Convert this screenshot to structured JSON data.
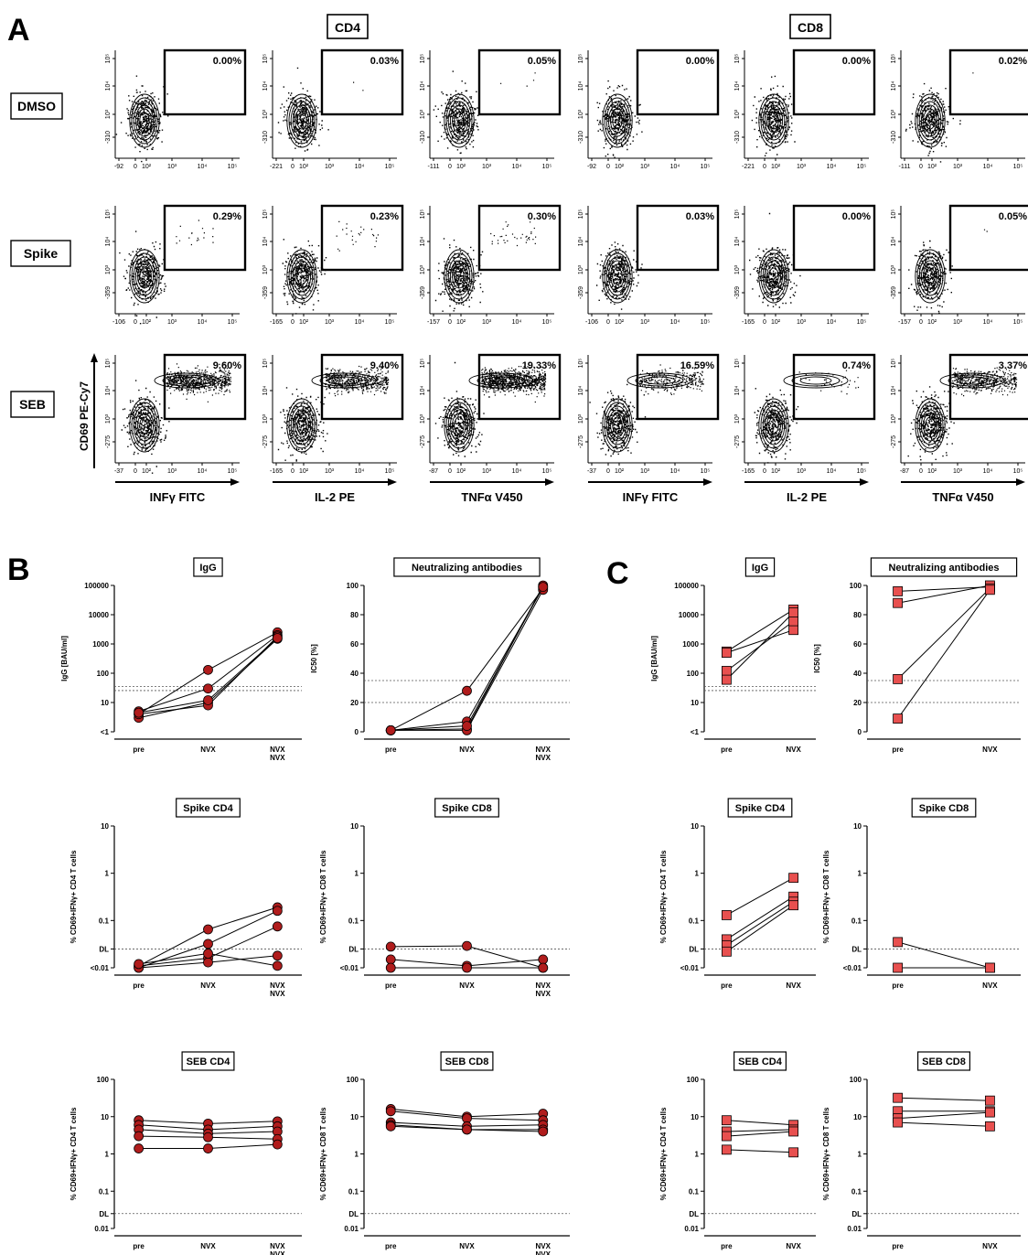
{
  "panel_letters": {
    "a": "A",
    "b": "B",
    "c": "C"
  },
  "group_headers": {
    "cd4": "CD4",
    "cd8": "CD8"
  },
  "row_labels": [
    "DMSO",
    "Spike",
    "SEB"
  ],
  "y_axis_label": "CD69 PE-Cy7",
  "x_axis_labels": [
    "INFγ FITC",
    "IL-2 PE",
    "TNFα V450",
    "INFγ FITC",
    "IL-2 PE",
    "TNFα V450"
  ],
  "flow": {
    "gate_percentages": [
      [
        "0.00%",
        "0.03%",
        "0.05%",
        "0.00%",
        "0.00%",
        "0.02%"
      ],
      [
        "0.29%",
        "0.23%",
        "0.30%",
        "0.03%",
        "0.00%",
        "0.05%"
      ],
      [
        "9.60%",
        "9.40%",
        "19.33%",
        "16.59%",
        "0.74%",
        "3.37%"
      ]
    ],
    "x_min_labels": [
      [
        "-92",
        "-221",
        "-111",
        "-92",
        "-221",
        "-111"
      ],
      [
        "-106",
        "-165",
        "-157",
        "-106",
        "-165",
        "-157"
      ],
      [
        "-37",
        "-165",
        "-87",
        "-37",
        "-165",
        "-87"
      ]
    ],
    "y_min_labels": [
      [
        "-310",
        "-310",
        "-310",
        "-310",
        "-310",
        "-310"
      ],
      [
        "-359",
        "-359",
        "-359",
        "-359",
        "-359",
        "-359"
      ],
      [
        "-275",
        "-275",
        "-275",
        "-275",
        "-275",
        "-275"
      ]
    ],
    "x_tick_labels": [
      "0",
      "10²",
      "10³",
      "10⁴",
      "10⁵"
    ],
    "y_tick_labels": [
      "10³",
      "10⁴",
      "10⁵"
    ]
  },
  "chart_data": [
    {
      "type": "line",
      "panel": "B",
      "title": "IgG",
      "ylabel": "IgG [BAU/ml]",
      "categories": [
        "pre",
        "NVX",
        "NVX\nNVX"
      ],
      "y_scale": "log",
      "y_tick_labels": [
        "<1",
        "10",
        "100",
        "1000",
        "10000",
        "100000"
      ],
      "reference_lines": [
        25.6,
        35.2
      ],
      "marker": "circle",
      "series": [
        {
          "values": [
            4,
            130,
            2500
          ]
        },
        {
          "values": [
            5,
            30,
            2000
          ]
        },
        {
          "values": [
            3,
            10,
            1500
          ]
        },
        {
          "values": [
            4,
            8,
            1800
          ]
        },
        {
          "values": [
            4.5,
            12,
            1600
          ]
        }
      ]
    },
    {
      "type": "line",
      "panel": "B",
      "title": "Neutralizing antibodies",
      "ylabel": "IC50 [%]",
      "categories": [
        "pre",
        "NVX",
        "NVX\nNVX"
      ],
      "ylim": [
        0,
        100
      ],
      "y_tick_labels": [
        "0",
        "20",
        "40",
        "60",
        "80",
        "100"
      ],
      "reference_lines": [
        20,
        35
      ],
      "marker": "circle",
      "series": [
        {
          "values": [
            1,
            28,
            98
          ]
        },
        {
          "values": [
            1,
            7,
            99
          ]
        },
        {
          "values": [
            1,
            2,
            100
          ]
        },
        {
          "values": [
            1,
            1,
            97
          ]
        },
        {
          "values": [
            1,
            4,
            99
          ]
        }
      ]
    },
    {
      "type": "line",
      "panel": "C",
      "title": "IgG",
      "ylabel": "IgG [BAU/ml]",
      "categories": [
        "pre",
        "NVX"
      ],
      "y_scale": "log",
      "y_tick_labels": [
        "<1",
        "10",
        "100",
        "1000",
        "10000",
        "100000"
      ],
      "reference_lines": [
        25.6,
        35.2
      ],
      "marker": "square",
      "series": [
        {
          "values": [
            550,
            15000
          ]
        },
        {
          "values": [
            500,
            3000
          ]
        },
        {
          "values": [
            120,
            6000
          ]
        },
        {
          "values": [
            60,
            12000
          ]
        }
      ]
    },
    {
      "type": "line",
      "panel": "C",
      "title": "Neutralizing antibodies",
      "ylabel": "IC50 [%]",
      "categories": [
        "pre",
        "NVX"
      ],
      "ylim": [
        0,
        100
      ],
      "y_tick_labels": [
        "0",
        "20",
        "40",
        "60",
        "80",
        "100"
      ],
      "reference_lines": [
        20,
        35
      ],
      "marker": "square",
      "series": [
        {
          "values": [
            96,
            99
          ]
        },
        {
          "values": [
            88,
            100
          ]
        },
        {
          "values": [
            36,
            98
          ]
        },
        {
          "values": [
            9,
            97
          ]
        }
      ]
    },
    {
      "type": "line",
      "panel": "B",
      "title": "Spike CD4",
      "ylabel": "% CD69+IFNγ+ CD4 T cells",
      "categories": [
        "pre",
        "NVX",
        "NVX\nNVX"
      ],
      "y_scale": "log",
      "y_tick_labels": [
        "<0.01",
        "DL",
        "0.1",
        "1",
        "10"
      ],
      "dl": 0.025,
      "marker": "circle",
      "series": [
        {
          "values": [
            0.011,
            0.065,
            0.19
          ]
        },
        {
          "values": [
            0.01,
            0.032,
            0.16
          ]
        },
        {
          "values": [
            0.011,
            0.016,
            0.075
          ]
        },
        {
          "values": [
            0.01,
            0.013,
            0.018
          ]
        },
        {
          "values": [
            0.012,
            0.02,
            0.011
          ]
        }
      ]
    },
    {
      "type": "line",
      "panel": "B",
      "title": "Spike CD8",
      "ylabel": "% CD69+IFNγ+ CD8 T cells",
      "categories": [
        "pre",
        "NVX",
        "NVX\nNVX"
      ],
      "y_scale": "log",
      "y_tick_labels": [
        "<0.01",
        "DL",
        "0.1",
        "1",
        "10"
      ],
      "dl": 0.025,
      "marker": "circle",
      "series": [
        {
          "values": [
            0.028,
            0.029,
            0.01
          ]
        },
        {
          "values": [
            0.015,
            0.011,
            0.015
          ]
        },
        {
          "values": [
            0.01,
            0.01,
            0.01
          ]
        }
      ]
    },
    {
      "type": "line",
      "panel": "C",
      "title": "Spike CD4",
      "ylabel": "% CD69+IFNγ+ CD4 T cells",
      "categories": [
        "pre",
        "NVX"
      ],
      "y_scale": "log",
      "y_tick_labels": [
        "<0.01",
        "DL",
        "0.1",
        "1",
        "10"
      ],
      "dl": 0.025,
      "marker": "square",
      "series": [
        {
          "values": [
            0.13,
            0.8
          ]
        },
        {
          "values": [
            0.04,
            0.32
          ]
        },
        {
          "values": [
            0.03,
            0.25
          ]
        },
        {
          "values": [
            0.022,
            0.21
          ]
        }
      ]
    },
    {
      "type": "line",
      "panel": "C",
      "title": "Spike CD8",
      "ylabel": "% CD69+IFNγ+ CD8 T cells",
      "categories": [
        "pre",
        "NVX"
      ],
      "y_scale": "log",
      "y_tick_labels": [
        "<0.01",
        "DL",
        "0.1",
        "1",
        "10"
      ],
      "dl": 0.025,
      "marker": "square",
      "series": [
        {
          "values": [
            0.035,
            0.01
          ]
        },
        {
          "values": [
            0.01,
            0.01
          ]
        }
      ]
    },
    {
      "type": "line",
      "panel": "B",
      "title": "SEB CD4",
      "ylabel": "% CD69+IFNγ+ CD4 T cells",
      "categories": [
        "pre",
        "NVX",
        "NVX\nNVX"
      ],
      "y_scale": "log",
      "y_tick_labels": [
        "0.01",
        "DL",
        "0.1",
        "1",
        "10",
        "100"
      ],
      "dl": 0.025,
      "marker": "circle",
      "series": [
        {
          "values": [
            8,
            6.5,
            7.5
          ]
        },
        {
          "values": [
            6,
            4.5,
            5.5
          ]
        },
        {
          "values": [
            4.5,
            3.5,
            4
          ]
        },
        {
          "values": [
            3,
            2.8,
            2.5
          ]
        },
        {
          "values": [
            1.4,
            1.4,
            1.8
          ]
        }
      ]
    },
    {
      "type": "line",
      "panel": "B",
      "title": "SEB CD8",
      "ylabel": "% CD69+IFNγ+ CD8 T cells",
      "categories": [
        "pre",
        "NVX",
        "NVX\nNVX"
      ],
      "y_scale": "log",
      "y_tick_labels": [
        "0.01",
        "DL",
        "0.1",
        "1",
        "10",
        "100"
      ],
      "dl": 0.025,
      "marker": "circle",
      "series": [
        {
          "values": [
            16,
            10,
            12
          ]
        },
        {
          "values": [
            14,
            9,
            8
          ]
        },
        {
          "values": [
            7,
            5.5,
            6
          ]
        },
        {
          "values": [
            6,
            4.5,
            4.5
          ]
        },
        {
          "values": [
            5.5,
            4.5,
            4
          ]
        }
      ]
    },
    {
      "type": "line",
      "panel": "C",
      "title": "SEB CD4",
      "ylabel": "% CD69+IFNγ+ CD4 T cells",
      "categories": [
        "pre",
        "NVX"
      ],
      "y_scale": "log",
      "y_tick_labels": [
        "0.01",
        "DL",
        "0.1",
        "1",
        "10",
        "100"
      ],
      "dl": 0.025,
      "marker": "square",
      "series": [
        {
          "values": [
            8,
            6
          ]
        },
        {
          "values": [
            4,
            4.5
          ]
        },
        {
          "values": [
            3,
            4
          ]
        },
        {
          "values": [
            1.3,
            1.1
          ]
        }
      ]
    },
    {
      "type": "line",
      "panel": "C",
      "title": "SEB CD8",
      "ylabel": "% CD69+IFNγ+ CD8 T cells",
      "categories": [
        "pre",
        "NVX"
      ],
      "y_scale": "log",
      "y_tick_labels": [
        "0.01",
        "DL",
        "0.1",
        "1",
        "10",
        "100"
      ],
      "dl": 0.025,
      "marker": "square",
      "series": [
        {
          "values": [
            32,
            27
          ]
        },
        {
          "values": [
            14,
            14
          ]
        },
        {
          "values": [
            9,
            13
          ]
        },
        {
          "values": [
            7,
            5.5
          ]
        }
      ]
    }
  ]
}
